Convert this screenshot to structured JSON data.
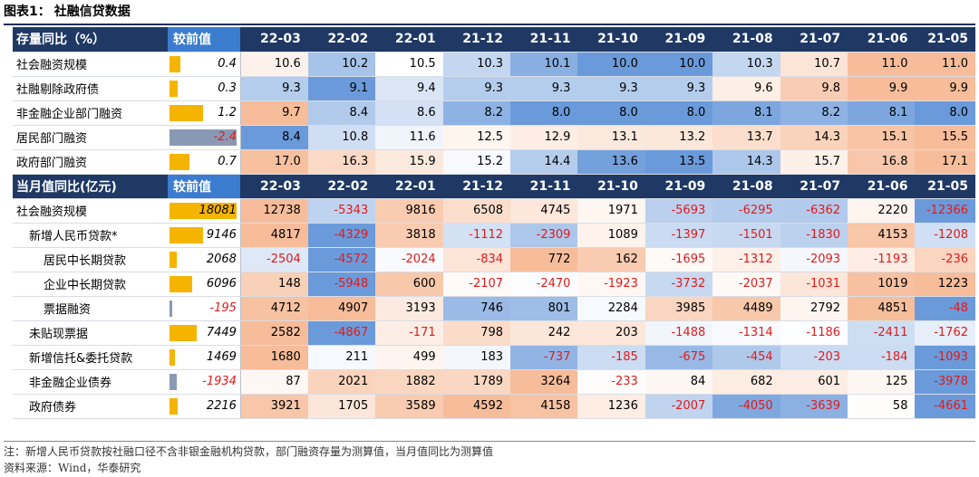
{
  "title": {
    "caption": "图表1：",
    "text": "社融信贷数据"
  },
  "colors": {
    "header_bg": "#1f3864",
    "compare_header_bg": "#3b7ccf",
    "bar_pos": "#f5b400",
    "bar_neg": "#8a99b3",
    "negative_text": "#e01b1b",
    "hm_blue": "#5b8fd6",
    "hm_orange": "#f4a678"
  },
  "periods": [
    "22-03",
    "22-02",
    "22-01",
    "21-12",
    "21-11",
    "21-10",
    "21-09",
    "21-08",
    "21-07",
    "21-06",
    "21-05"
  ],
  "section1": {
    "header": "存量同比（%）",
    "compare_header": "较前值",
    "bar_max": 2.4,
    "rows": [
      {
        "label": "社会融资规模",
        "indent": 0,
        "compare": "0.4",
        "cmp_val": 0.4,
        "values": [
          "10.6",
          "10.2",
          "10.5",
          "10.3",
          "10.1",
          "10.0",
          "10.0",
          "10.3",
          "10.7",
          "11.0",
          "11.0"
        ]
      },
      {
        "label": "社融剔除政府债",
        "indent": 0,
        "compare": "0.3",
        "cmp_val": 0.3,
        "values": [
          "9.3",
          "9.1",
          "9.4",
          "9.3",
          "9.3",
          "9.3",
          "9.3",
          "9.6",
          "9.8",
          "9.9",
          "9.9"
        ]
      },
      {
        "label": "非金融企业部门融资",
        "indent": 0,
        "compare": "1.2",
        "cmp_val": 1.2,
        "values": [
          "9.7",
          "8.4",
          "8.6",
          "8.2",
          "8.0",
          "8.0",
          "8.0",
          "8.1",
          "8.2",
          "8.1",
          "8.0"
        ]
      },
      {
        "label": "居民部门融资",
        "indent": 0,
        "compare": "-2.4",
        "cmp_val": -2.4,
        "values": [
          "8.4",
          "10.8",
          "11.6",
          "12.5",
          "12.9",
          "13.1",
          "13.2",
          "13.7",
          "14.3",
          "15.1",
          "15.5"
        ]
      },
      {
        "label": "政府部门融资",
        "indent": 0,
        "compare": "0.7",
        "cmp_val": 0.7,
        "values": [
          "17.0",
          "16.3",
          "15.9",
          "15.2",
          "14.4",
          "13.6",
          "13.5",
          "14.3",
          "15.7",
          "16.8",
          "17.1"
        ]
      }
    ]
  },
  "section2": {
    "header": "当月值同比(亿元)",
    "compare_header": "较前值",
    "bar_max": 18081,
    "rows": [
      {
        "label": "社会融资规模",
        "indent": 0,
        "compare": "18081",
        "cmp_val": 18081,
        "values": [
          "12738",
          "-5343",
          "9816",
          "6508",
          "4745",
          "1971",
          "-5693",
          "-6295",
          "-6362",
          "2220",
          "-12366"
        ]
      },
      {
        "label": "新增人民币贷款*",
        "indent": 1,
        "compare": "9146",
        "cmp_val": 9146,
        "values": [
          "4817",
          "-4329",
          "3818",
          "-1112",
          "-2309",
          "1089",
          "-1397",
          "-1501",
          "-1830",
          "4153",
          "-1208"
        ]
      },
      {
        "label": "居民中长期贷款",
        "indent": 2,
        "compare": "2068",
        "cmp_val": 2068,
        "values": [
          "-2504",
          "-4572",
          "-2024",
          "-834",
          "772",
          "162",
          "-1695",
          "-1312",
          "-2093",
          "-1193",
          "-236"
        ]
      },
      {
        "label": "企业中长期贷款",
        "indent": 2,
        "compare": "6096",
        "cmp_val": 6096,
        "values": [
          "148",
          "-5948",
          "600",
          "-2107",
          "-2470",
          "-1923",
          "-3732",
          "-2037",
          "-1031",
          "1019",
          "1223"
        ]
      },
      {
        "label": "票据融资",
        "indent": 2,
        "compare": "-195",
        "cmp_val": -195,
        "values": [
          "4712",
          "4907",
          "3193",
          "746",
          "801",
          "2284",
          "3985",
          "4489",
          "2792",
          "4851",
          "-48"
        ]
      },
      {
        "label": "未贴现票据",
        "indent": 1,
        "compare": "7449",
        "cmp_val": 7449,
        "values": [
          "2582",
          "-4867",
          "-171",
          "798",
          "242",
          "203",
          "-1488",
          "-1314",
          "-1186",
          "-2411",
          "-1762"
        ]
      },
      {
        "label": "新增信托&委托贷款",
        "indent": 1,
        "compare": "1469",
        "cmp_val": 1469,
        "values": [
          "1680",
          "211",
          "499",
          "183",
          "-737",
          "-185",
          "-675",
          "-454",
          "-203",
          "-184",
          "-1093"
        ]
      },
      {
        "label": "非金融企业债券",
        "indent": 1,
        "compare": "-1934",
        "cmp_val": -1934,
        "values": [
          "87",
          "2021",
          "1882",
          "1789",
          "3264",
          "-233",
          "84",
          "682",
          "601",
          "125",
          "-3978"
        ]
      },
      {
        "label": "政府债券",
        "indent": 1,
        "compare": "2216",
        "cmp_val": 2216,
        "values": [
          "3921",
          "1705",
          "3589",
          "4592",
          "4158",
          "1236",
          "-2007",
          "-4050",
          "-3639",
          "58",
          "-4661"
        ]
      }
    ]
  },
  "footer": {
    "note": "注：新增人民币贷款按社融口径不含非银金融机构贷款，部门融资存量为测算值，当月值同比为测算值",
    "source": "资料来源：Wind，华泰研究"
  }
}
